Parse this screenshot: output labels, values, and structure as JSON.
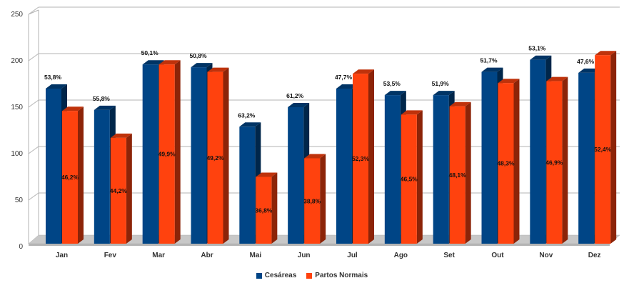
{
  "chart_data": {
    "type": "bar",
    "categories": [
      "Jan",
      "Fev",
      "Mar",
      "Abr",
      "Mai",
      "Jun",
      "Jul",
      "Ago",
      "Set",
      "Out",
      "Nov",
      "Dez"
    ],
    "series": [
      {
        "name": "Cesáreas",
        "color": "#004586",
        "values": [
          170,
          147,
          196,
          193,
          129,
          150,
          170,
          163,
          163,
          188,
          201,
          187
        ],
        "labels": [
          "53,8%",
          "55,8%",
          "50,1%",
          "50,8%",
          "63,2%",
          "61,2%",
          "47,7%",
          "53,5%",
          "51,9%",
          "51,7%",
          "53,1%",
          "47,6%"
        ]
      },
      {
        "name": "Partos Normais",
        "color": "#ff420e",
        "values": [
          146,
          117,
          196,
          188,
          75,
          95,
          186,
          142,
          151,
          176,
          178,
          206
        ],
        "labels": [
          "46,2%",
          "44,2%",
          "49,9%",
          "49,2%",
          "36,8%",
          "38,8%",
          "52,3%",
          "46,5%",
          "48,1%",
          "48,3%",
          "46,9%",
          "52,4%"
        ]
      }
    ],
    "ylim": [
      0,
      250
    ],
    "yticks": [
      0,
      50,
      100,
      150,
      200,
      250
    ],
    "grid": true,
    "legend_position": "bottom",
    "title": "",
    "xlabel": "",
    "ylabel": ""
  }
}
